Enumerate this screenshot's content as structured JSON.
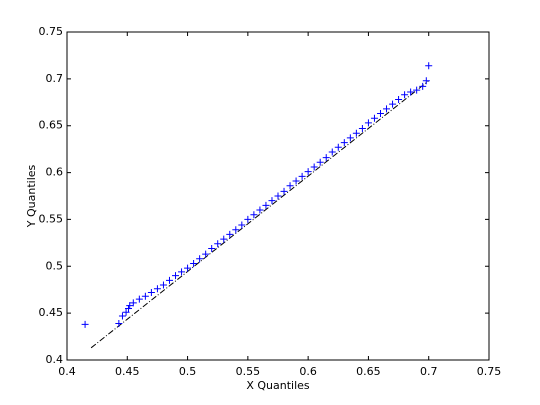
{
  "chart_data": {
    "type": "scatter",
    "xlabel": "X Quantiles",
    "ylabel": "Y Quantiles",
    "xlim": [
      0.4,
      0.75
    ],
    "ylim": [
      0.4,
      0.75
    ],
    "xticks": [
      0.4,
      0.45,
      0.5,
      0.55,
      0.6,
      0.65,
      0.7,
      0.75
    ],
    "yticks": [
      0.4,
      0.45,
      0.5,
      0.55,
      0.6,
      0.65,
      0.7,
      0.75
    ],
    "series": [
      {
        "color": "#0000ff",
        "x": [
          0.415,
          0.443,
          0.446,
          0.449,
          0.451,
          0.452,
          0.455,
          0.46,
          0.465,
          0.47,
          0.475,
          0.48,
          0.485,
          0.49,
          0.495,
          0.5,
          0.505,
          0.51,
          0.515,
          0.52,
          0.525,
          0.53,
          0.535,
          0.54,
          0.545,
          0.55,
          0.555,
          0.56,
          0.565,
          0.57,
          0.575,
          0.58,
          0.585,
          0.59,
          0.595,
          0.6,
          0.605,
          0.61,
          0.615,
          0.62,
          0.625,
          0.63,
          0.635,
          0.64,
          0.645,
          0.65,
          0.655,
          0.66,
          0.665,
          0.67,
          0.675,
          0.68,
          0.685,
          0.69,
          0.695,
          0.698,
          0.7
        ],
        "values": [
          0.438,
          0.439,
          0.447,
          0.451,
          0.455,
          0.458,
          0.461,
          0.465,
          0.468,
          0.472,
          0.476,
          0.48,
          0.485,
          0.49,
          0.494,
          0.498,
          0.503,
          0.508,
          0.513,
          0.519,
          0.524,
          0.529,
          0.534,
          0.539,
          0.544,
          0.55,
          0.555,
          0.56,
          0.565,
          0.57,
          0.575,
          0.58,
          0.586,
          0.591,
          0.596,
          0.601,
          0.606,
          0.611,
          0.616,
          0.622,
          0.627,
          0.632,
          0.637,
          0.642,
          0.647,
          0.653,
          0.658,
          0.663,
          0.668,
          0.673,
          0.678,
          0.683,
          0.686,
          0.688,
          0.692,
          0.698,
          0.714
        ]
      }
    ],
    "reference_line": {
      "color": "#000000",
      "x": [
        0.42,
        0.7
      ],
      "values": [
        0.413,
        0.698
      ]
    }
  }
}
